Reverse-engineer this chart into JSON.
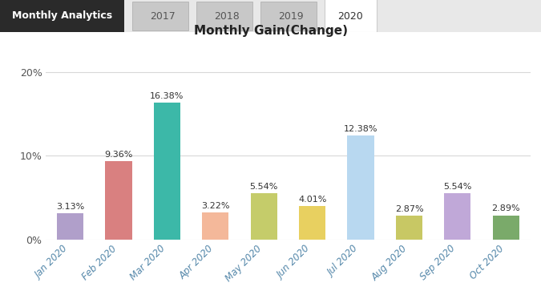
{
  "title": "Monthly Gain(Change)",
  "categories": [
    "Jan 2020",
    "Feb 2020",
    "Mar 2020",
    "Apr 2020",
    "May 2020",
    "Jun 2020",
    "Jul 2020",
    "Aug 2020",
    "Sep 2020",
    "Oct 2020"
  ],
  "values": [
    3.13,
    9.36,
    16.38,
    3.22,
    5.54,
    4.01,
    12.38,
    2.87,
    5.54,
    2.89
  ],
  "bar_colors": [
    "#b09fca",
    "#d98080",
    "#3cb8a8",
    "#f4b89a",
    "#c5cc6a",
    "#e8d060",
    "#b8d8f0",
    "#c8c864",
    "#c0a8d8",
    "#7aaa6a"
  ],
  "ylim": [
    0,
    22
  ],
  "yticks": [
    0,
    10,
    20
  ],
  "ytick_labels": [
    "0%",
    "10%",
    "20%"
  ],
  "grid_color": "#d8d8d8",
  "background_color": "#ffffff",
  "tab_bar_bg": "#e8e8e8",
  "tab_labels": [
    "Monthly Analytics",
    "2017",
    "2018",
    "2019",
    "2020"
  ],
  "tab_active_bg": "#ffffff",
  "tab_inactive_bg": "#c8c8c8",
  "tab_header_bg": "#2a2a2a",
  "tab_header_fg": "#ffffff",
  "tab_inactive_fg": "#555555",
  "tab_active_fg": "#333333"
}
